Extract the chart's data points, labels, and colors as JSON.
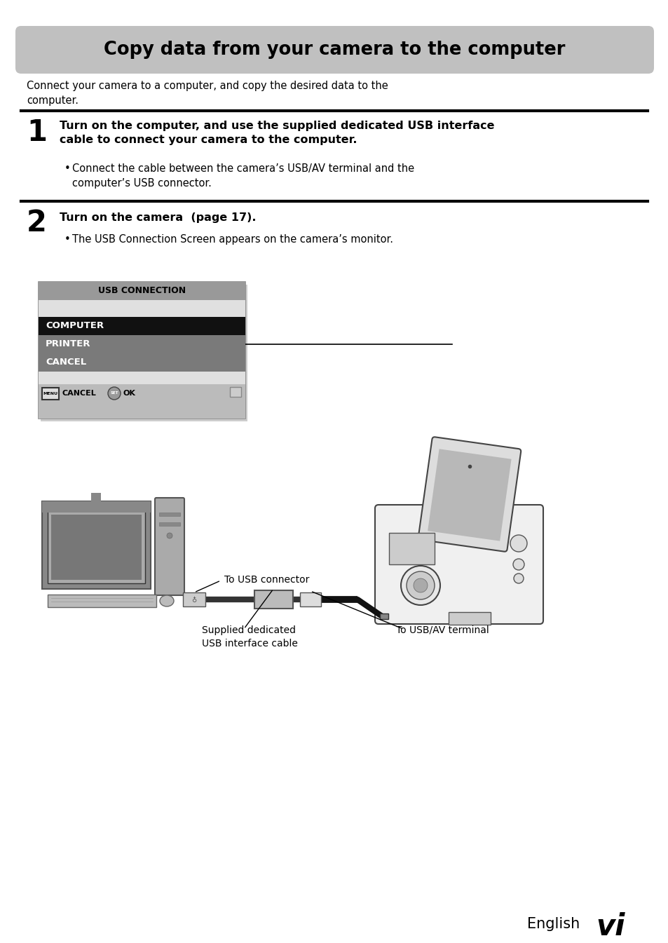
{
  "title": "Copy data from your camera to the computer",
  "intro_text": "Connect your camera to a computer, and copy the desired data to the\ncomputer.",
  "step1_number": "1",
  "step1_bold_line1": "Turn on the computer, and use the supplied dedicated USB interface",
  "step1_bold_line2": "cable to connect your camera to the computer.",
  "step1_bullet": "Connect the cable between the camera’s USB/AV terminal and the\n        computer’s USB connector.",
  "step2_number": "2",
  "step2_bold": "Turn on the camera  (page 17).",
  "step2_bullet": "The USB Connection Screen appears on the camera’s monitor.",
  "usb_title": "USB CONNECTION",
  "usb_items": [
    "COMPUTER",
    "PRINTER",
    "CANCEL"
  ],
  "usb_item_colors": [
    "#111111",
    "#7a7a7a",
    "#7a7a7a"
  ],
  "usb_item_text_colors": [
    "#ffffff",
    "#ffffff",
    "#ffffff"
  ],
  "usb_bg_title_color": "#aaaaaa",
  "usb_bg_light_color": "#e0e0e0",
  "usb_bg_bottom_color": "#bbbbbb",
  "footer_lang": "English",
  "footer_page": "vi",
  "bg_color": "#ffffff",
  "title_bg_color": "#c0c0c0",
  "divider_color": "#000000",
  "annotation_usb_connector": "To USB connector",
  "annotation_usb_av": "To USB/AV terminal",
  "annotation_usb_cable": "Supplied dedicated\nUSB interface cable"
}
